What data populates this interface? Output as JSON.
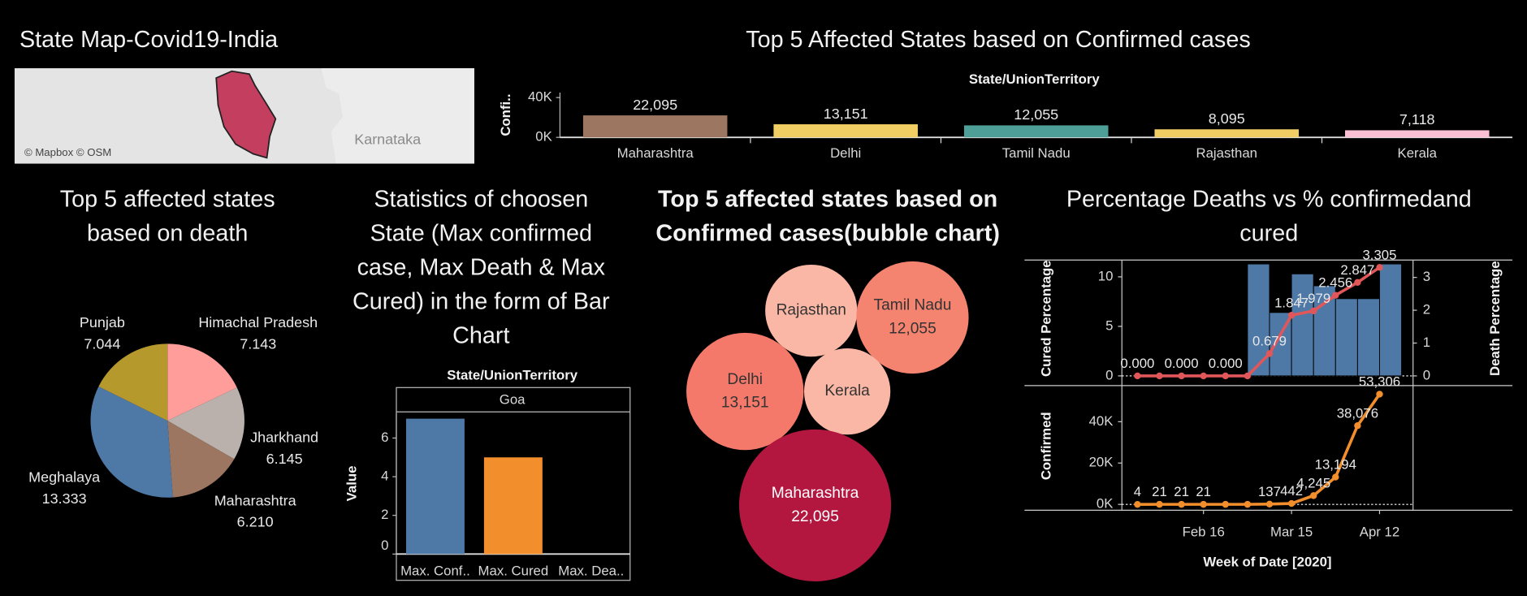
{
  "map": {
    "title": "State Map-Covid19-India",
    "label": "Karnataka",
    "attribution": "© Mapbox © OSM"
  },
  "chart_data": [
    {
      "type": "bar",
      "title": "Top 5 Affected States based on Confirmed cases",
      "header": "State/UnionTerritory",
      "ylabel": "Confi..",
      "categories": [
        "Maharashtra",
        "Delhi",
        "Tamil Nadu",
        "Rajasthan",
        "Kerala"
      ],
      "values": [
        22095,
        13151,
        12055,
        8095,
        7118
      ],
      "value_labels": [
        "22,095",
        "13,151",
        "12,055",
        "8,095",
        "7,118"
      ],
      "colors": [
        "#9c7660",
        "#f1ce63",
        "#4e9f98",
        "#f1ce63",
        "#fabfd2"
      ],
      "ylim": [
        0,
        45000
      ],
      "yticks": [
        {
          "value": 0,
          "label": "0K"
        },
        {
          "value": 40000,
          "label": "40K"
        }
      ]
    },
    {
      "type": "pie",
      "title": [
        "Top 5 affected states",
        "based on death"
      ],
      "categories": [
        "Himachal Pradesh",
        "Jharkhand",
        "Maharashtra",
        "Meghalaya",
        "Punjab"
      ],
      "values": [
        7.143,
        6.145,
        6.21,
        13.333,
        7.044
      ],
      "value_labels": [
        "7.143",
        "6.145",
        "6.210",
        "13.333",
        "7.044"
      ],
      "colors": [
        "#ff9d9a",
        "#bab0ac",
        "#9c7660",
        "#4e79a7",
        "#b6992d"
      ]
    },
    {
      "type": "bar",
      "title": [
        "Statistics of choosen",
        "State (Max confirmed",
        "case, Max Death & Max",
        "Cured) in the form of Bar",
        "Chart"
      ],
      "header": "State/UnionTerritory",
      "panel": "Goa",
      "ylabel": "Value",
      "categories": [
        "Max. Conf..",
        "Max. Cured",
        "Max. Dea.."
      ],
      "values": [
        7,
        5,
        0
      ],
      "colors": [
        "#4e79a7",
        "#f28e2b",
        "#e15759"
      ],
      "ylim": [
        0,
        7.3
      ],
      "yticks": [
        0,
        2,
        4,
        6
      ]
    },
    {
      "type": "bubble",
      "title": [
        "Top 5 affected states based on",
        "Confirmed cases(bubble chart)"
      ],
      "categories": [
        "Rajasthan",
        "Tamil Nadu",
        "Delhi",
        "Kerala",
        "Maharashtra"
      ],
      "values": [
        8095,
        12055,
        13151,
        7118,
        22095
      ],
      "value_labels": [
        null,
        "12,055",
        "13,151",
        null,
        "22,095"
      ],
      "colors": [
        "#fbb7a5",
        "#f4836f",
        "#f4796a",
        "#fbb7a5",
        "#b3173f"
      ]
    },
    {
      "type": "combo",
      "title": [
        "Percentage Deaths vs % confirmedand",
        "cured"
      ],
      "xlabel": "Week of Date [2020]",
      "categories": [
        null,
        null,
        null,
        "Feb 16",
        null,
        null,
        null,
        "Mar 15",
        null,
        null,
        null,
        "Apr 12"
      ],
      "panes": [
        {
          "ylim": [
            0,
            11.6
          ],
          "yticks": [
            0,
            5,
            10
          ],
          "y2lim": [
            0,
            3.5
          ],
          "y2ticks": [
            0,
            1,
            2,
            3
          ],
          "series": [
            {
              "name": "Cured Percentage",
              "mark": "bar",
              "color": "#4e79a7",
              "values": [
                null,
                null,
                null,
                null,
                null,
                11.3,
                6.4,
                10.3,
                9.1,
                7.8,
                7.8,
                11.3
              ]
            },
            {
              "name": "Death Percentage",
              "mark": "line",
              "axis": "y2",
              "color": "#e15759",
              "values": [
                0,
                0,
                0,
                0,
                0,
                0,
                0.679,
                1.847,
                1.979,
                2.456,
                2.847,
                3.305
              ],
              "value_labels": [
                "0.000",
                null,
                "0.000",
                null,
                "0.000",
                null,
                "0.679",
                "1.847",
                "1.979",
                "2.456",
                "2.847",
                "3.305"
              ]
            }
          ]
        },
        {
          "ylim": [
            0,
            56500
          ],
          "yticks": [
            {
              "value": 0,
              "label": "0K"
            },
            {
              "value": 20000,
              "label": "20K"
            },
            {
              "value": 40000,
              "label": "40K"
            }
          ],
          "series": [
            {
              "name": "Confirmed",
              "mark": "line",
              "color": "#f28e2b",
              "values": [
                4,
                21,
                21,
                21,
                21,
                21,
                137,
                442,
                4245,
                13194,
                38076,
                53306
              ],
              "value_labels": [
                "4",
                "21",
                "21",
                "21",
                null,
                null,
                "137",
                "442",
                "4,245",
                "13,194",
                "38,076",
                "53,306"
              ]
            }
          ]
        }
      ]
    }
  ]
}
